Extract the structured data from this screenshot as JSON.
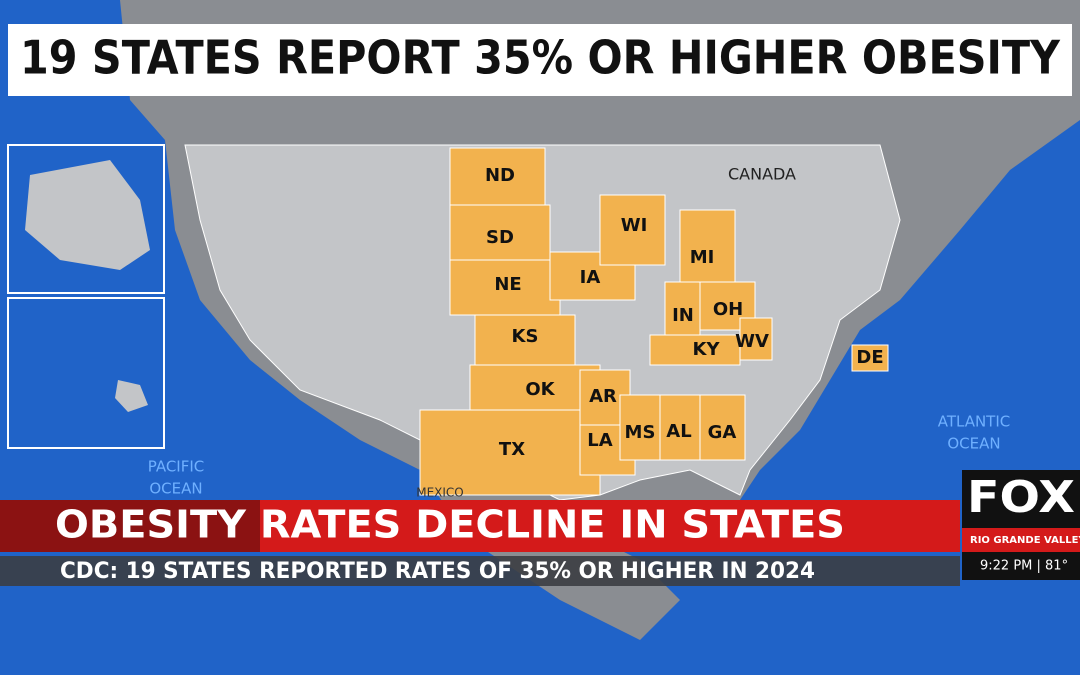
{
  "header": {
    "title": "19 STATES REPORT 35% OR HIGHER OBESITY"
  },
  "map": {
    "places": {
      "canada": "CANADA",
      "pacific": [
        "PACIFIC",
        "OCEAN"
      ],
      "atlantic": [
        "ATLANTIC",
        "OCEAN"
      ],
      "mexico": "MEXICO"
    },
    "states": [
      "ND",
      "SD",
      "NE",
      "KS",
      "OK",
      "TX",
      "IA",
      "WI",
      "MI",
      "IN",
      "OH",
      "KY",
      "WV",
      "AR",
      "LA",
      "MS",
      "AL",
      "GA",
      "DE"
    ]
  },
  "lower_third": {
    "headline": "OBESITY RATES DECLINE IN STATES",
    "subline": "CDC: 19 STATES REPORTED RATES OF 35% OR HIGHER IN 2024",
    "brand": "FOX",
    "station": "RIO GRANDE VALLEY",
    "time_weather": "9:22 PM | 81°"
  }
}
